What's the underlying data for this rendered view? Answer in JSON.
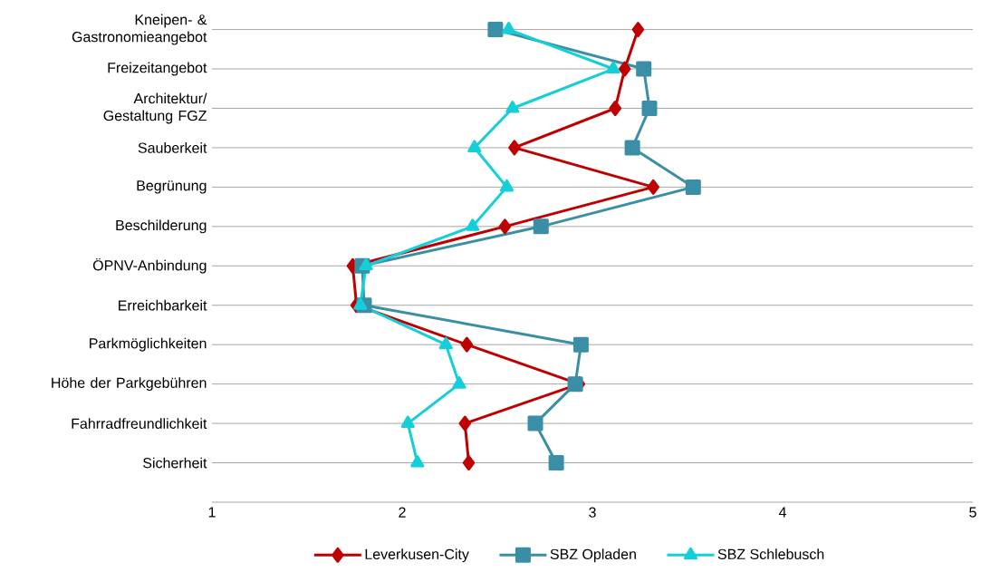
{
  "chart_data": {
    "type": "line",
    "orientation": "horizontal",
    "categories": [
      "Kneipen- & Gastronomieangebot",
      "Freizeitangebot",
      "Architektur/ Gestaltung FGZ",
      "Sauberkeit",
      "Begrünung",
      "Beschilderung",
      "ÖPNV-Anbindung",
      "Erreichbarkeit",
      "Parkmöglichkeiten",
      "Höhe der Parkgebühren",
      "Fahrradfreundlichkeit",
      "Sicherheit"
    ],
    "series": [
      {
        "name": "Leverkusen-City",
        "color": "#c00000",
        "marker": "diamond",
        "values": [
          3.24,
          3.17,
          3.12,
          2.59,
          3.32,
          2.54,
          1.74,
          1.76,
          2.34,
          2.93,
          2.33,
          2.35
        ]
      },
      {
        "name": "SBZ Opladen",
        "color": "#3a8fa6",
        "marker": "square",
        "values": [
          2.49,
          3.27,
          3.3,
          3.21,
          3.53,
          2.73,
          1.79,
          1.8,
          2.94,
          2.91,
          2.7,
          2.81
        ]
      },
      {
        "name": "SBZ Schlebusch",
        "color": "#12cfd8",
        "marker": "triangle",
        "values": [
          2.56,
          3.11,
          2.58,
          2.38,
          2.55,
          2.37,
          1.81,
          1.78,
          2.23,
          2.3,
          2.03,
          2.08
        ]
      }
    ],
    "xlim": [
      1,
      5
    ],
    "xticks": [
      1,
      2,
      3,
      4,
      5
    ],
    "grid": "y",
    "legend": "bottom",
    "line_style": "solid"
  }
}
